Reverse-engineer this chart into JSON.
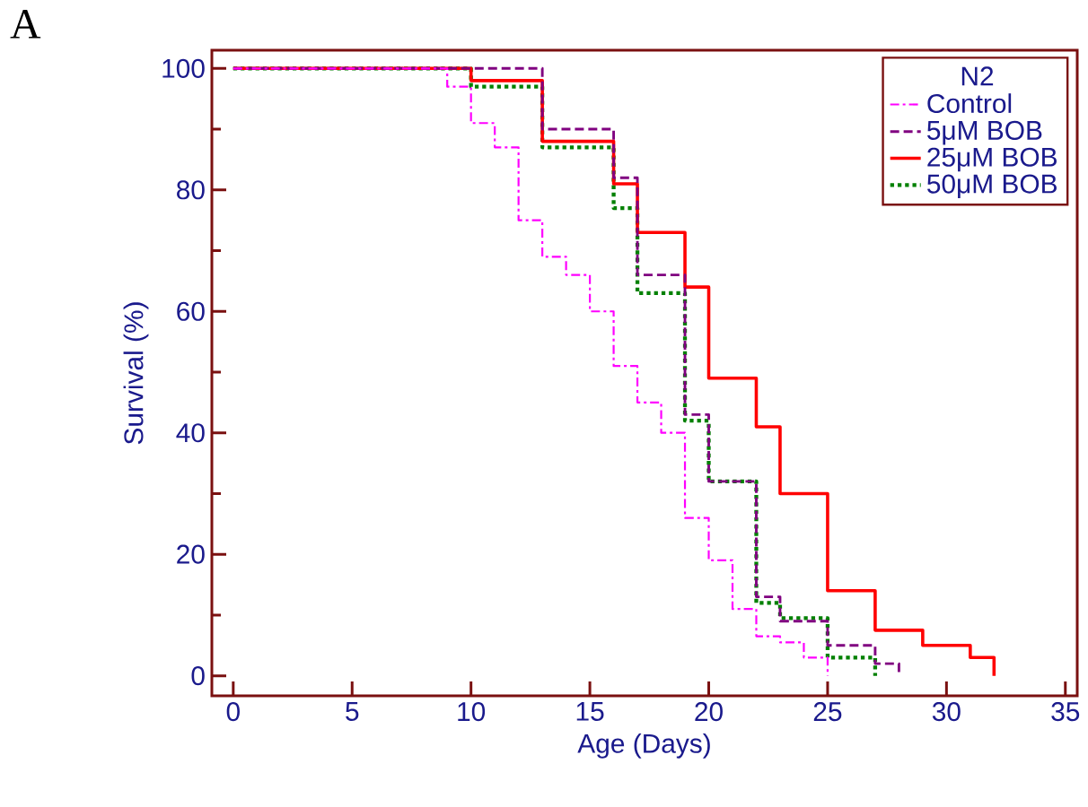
{
  "chart_data": {
    "type": "step",
    "xlabel": "Age (Days)",
    "ylabel": "Survival (%)",
    "legend_title": "N2",
    "annotations": [
      "A"
    ],
    "xlim": [
      -0.9,
      35.5
    ],
    "ylim": [
      -3.3,
      103
    ],
    "xticks": [
      0,
      5,
      10,
      15,
      20,
      25,
      30,
      35
    ],
    "yticks": [
      0,
      20,
      40,
      60,
      80,
      100
    ],
    "legend": "top right",
    "series": [
      {
        "name": "Control",
        "color": "#ff00ff",
        "line_style": "dashdot",
        "x": [
          0,
          9,
          10,
          11,
          12,
          13,
          14,
          15,
          16,
          17,
          18,
          19,
          20,
          21,
          22,
          23,
          24,
          25
        ],
        "values": [
          100,
          97,
          91,
          87,
          75,
          69,
          66,
          60,
          51,
          45,
          40,
          26,
          19,
          11,
          6.5,
          5.5,
          3,
          0
        ]
      },
      {
        "name": "5μM BOB",
        "color": "#800080",
        "line_style": "dashed",
        "x": [
          0,
          13,
          16,
          17,
          19,
          20,
          22,
          23,
          25,
          27,
          28
        ],
        "values": [
          100,
          90,
          82,
          66,
          43,
          32,
          13,
          9,
          5,
          2,
          0
        ]
      },
      {
        "name": "25μM BOB",
        "color": "#ff0000",
        "line_style": "solid",
        "x": [
          0,
          10,
          13,
          16,
          17,
          19,
          20,
          22,
          23,
          25,
          27,
          29,
          31,
          32
        ],
        "values": [
          100,
          98,
          88,
          81,
          73,
          64,
          49,
          41,
          30,
          14,
          7.5,
          5,
          3,
          0
        ]
      },
      {
        "name": "50μM BOB",
        "color": "#008000",
        "line_style": "dotted",
        "x": [
          0,
          10,
          13,
          16,
          17,
          19,
          20,
          22,
          23,
          25,
          27
        ],
        "values": [
          100,
          97,
          87,
          77,
          63,
          42,
          32,
          12,
          9.5,
          3,
          0
        ]
      }
    ]
  }
}
